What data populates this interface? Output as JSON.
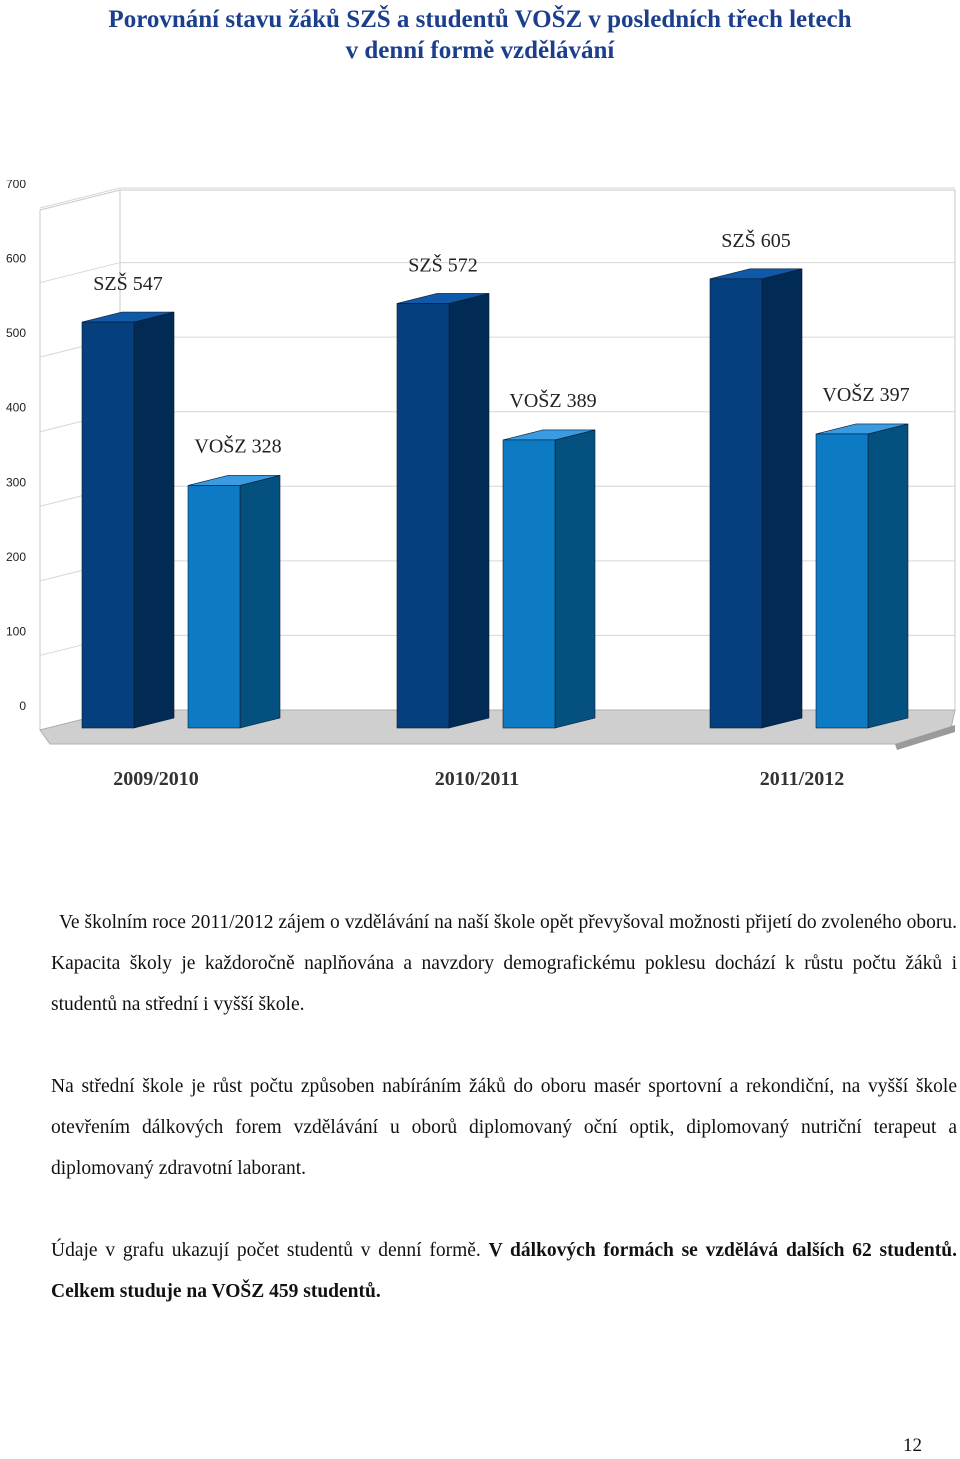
{
  "title": {
    "line1": "Porovnání stavu žáků SZŠ a studentů VOŠZ v posledních třech letech",
    "line2": "v denní formě vzdělávání"
  },
  "chart_data": {
    "type": "bar",
    "categories": [
      "2009/2010",
      "2010/2011",
      "2011/2012"
    ],
    "series": [
      {
        "name": "SZŠ",
        "values": [
          547,
          572,
          605
        ]
      },
      {
        "name": "VOŠZ",
        "values": [
          328,
          389,
          397
        ]
      }
    ],
    "data_labels": [
      [
        "SZŠ 547",
        "VOŠZ 328"
      ],
      [
        "SZŠ 572",
        "VOŠZ 389"
      ],
      [
        "SZŠ 605",
        "VOŠZ 397"
      ]
    ],
    "yticks": [
      "0",
      "100",
      "200",
      "300",
      "400",
      "500",
      "600",
      "700"
    ],
    "ylim": [
      0,
      700
    ],
    "grid": true,
    "style": "3d",
    "colors": {
      "szs_front": "#063f7d",
      "szs_side": "#012a55",
      "szs_top": "#0e5aa8",
      "voszs_front": "#0c7bc4",
      "voszs_side": "#04507f",
      "voszs_top": "#3a9be0"
    }
  },
  "paragraphs": {
    "p1": "Ve školním roce 2011/2012 zájem o vzdělávání na naší škole opět převyšoval možnosti přijetí do zvoleného oboru. Kapacita školy je každoročně naplňována a navzdory demografickému poklesu dochází k růstu počtu žáků i studentů na střední i vyšší škole.",
    "p2": "Na střední škole je růst počtu způsoben nabíráním žáků do oboru masér sportovní a rekondiční, na vyšší škole otevřením dálkových forem vzdělávání u oborů diplomovaný oční optik, diplomovaný nutriční terapeut a diplomovaný zdravotní laborant.",
    "p3_normal": "Údaje v grafu ukazují počet studentů v denní formě. ",
    "p3_bold": "V dálkových formách se vzdělává dalších 62 studentů. Celkem studuje na VOŠZ 459 studentů."
  },
  "page_number": "12"
}
